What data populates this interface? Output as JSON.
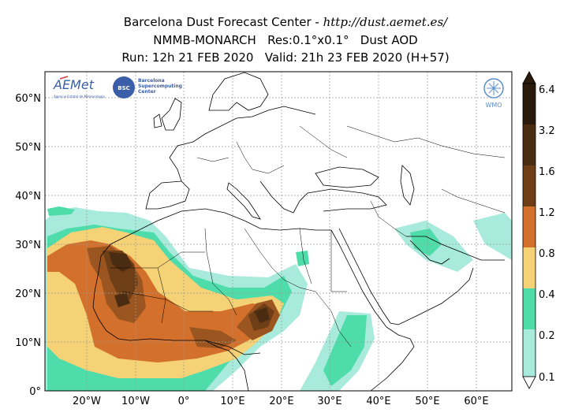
{
  "title": {
    "line1_prefix": "Barcelona Dust Forecast Center - ",
    "line1_url": "http://dust.aemet.es/",
    "line2": "NMMB-MONARCH   Res:0.1°x0.1°   Dust AOD",
    "line3": "Run: 12h 21 FEB 2020   Valid: 21h 23 FEB 2020 (H+57)"
  },
  "logos": {
    "aemet_text": "AEMet",
    "aemet_sub": "Agencia Estatal de Meteorología",
    "bsc_text": "BSC",
    "bsc_name_1": "Barcelona",
    "bsc_name_2": "Supercomputing",
    "bsc_name_3": "Center",
    "wmo_text": "WMO"
  },
  "axes": {
    "lat_ticks": [
      "60°N",
      "50°N",
      "40°N",
      "30°N",
      "20°N",
      "10°N",
      "0°"
    ],
    "lon_ticks": [
      "20°W",
      "10°W",
      "0°",
      "10°E",
      "20°E",
      "30°E",
      "40°E",
      "50°E",
      "60°E"
    ],
    "lon_range": [
      -29,
      67
    ],
    "lat_range": [
      0,
      65
    ]
  },
  "colorbar": {
    "labels": [
      "6.4",
      "3.2",
      "1.6",
      "1.2",
      "0.8",
      "0.4",
      "0.2",
      "0.1"
    ],
    "colors": [
      "#2a1a0c",
      "#4a2c12",
      "#6e3e17",
      "#9a5520",
      "#d2702c",
      "#f4d275",
      "#4fdcab",
      "#a8eadb"
    ]
  },
  "colors": {
    "land": "#ffffff",
    "border": "#000000",
    "grid": "#9a9a9a"
  }
}
